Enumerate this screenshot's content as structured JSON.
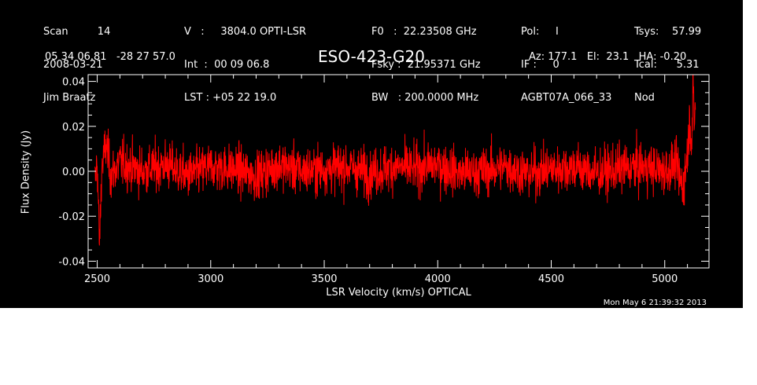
{
  "header": {
    "col1": [
      "Scan         14",
      "2008-03-21",
      "Jim Braatz"
    ],
    "col2": [
      "V   :     3804.0 OPTI-LSR",
      "Int  :  00 09 06.8",
      "LST : +05 22 19.0"
    ],
    "col3": [
      "F0   :  22.23508 GHz",
      "Fsky :  21.95371 GHz",
      "BW   : 200.0000 MHz"
    ],
    "col4": [
      "Pol:     I",
      "IF :     0",
      "AGBT07A_066_33"
    ],
    "col5": [
      "Tsys:    57.99",
      "Tcal:      5.31",
      "Nod"
    ],
    "coords": "05 34 06.81   -28 27 57.0",
    "source": "ESO-423-G20",
    "pointing": "Az: 177.1   El:  23.1   HA: -0.20",
    "timestamp": "Mon May  6 21:39:32 2013"
  },
  "colors": {
    "background": "#000000",
    "axes": "#ffffff",
    "trace": "#ff0000"
  },
  "chart_data": {
    "type": "line",
    "title": "ESO-423-G20",
    "xlabel": "LSR Velocity (km/s) OPTICAL",
    "ylabel": "Flux Density (Jy)",
    "xlim": [
      2460,
      5195
    ],
    "ylim": [
      -0.043,
      0.043
    ],
    "x_ticks": [
      2500,
      3000,
      3500,
      4000,
      4500,
      5000
    ],
    "y_ticks": [
      -0.04,
      -0.02,
      0.0,
      0.02,
      0.04
    ],
    "x_tick_labels": [
      "2500",
      "3000",
      "3500",
      "4000",
      "4500",
      "5000"
    ],
    "y_tick_labels": [
      "-0.04",
      "-0.02",
      "0.00",
      "0.02",
      "0.04"
    ],
    "series": [
      {
        "color": "#ff0000",
        "x_start": 2490,
        "x_end": 5135,
        "description_points": [
          [
            2490,
            -0.005
          ],
          [
            2500,
            0.005
          ],
          [
            2510,
            -0.034
          ],
          [
            2520,
            0.002
          ],
          [
            2540,
            0.012
          ],
          [
            2560,
            -0.002
          ],
          [
            2600,
            0.004
          ],
          [
            2700,
            0.0
          ],
          [
            2800,
            0.003
          ],
          [
            2900,
            -0.002
          ],
          [
            3000,
            0.002
          ],
          [
            3100,
            0.001
          ],
          [
            3200,
            -0.002
          ],
          [
            3300,
            0.003
          ],
          [
            3400,
            0.0
          ],
          [
            3500,
            0.001
          ],
          [
            3600,
            0.002
          ],
          [
            3700,
            -0.001
          ],
          [
            3800,
            0.002
          ],
          [
            3900,
            0.001
          ],
          [
            4000,
            0.003
          ],
          [
            4100,
            -0.001
          ],
          [
            4200,
            0.0
          ],
          [
            4300,
            0.002
          ],
          [
            4400,
            -0.001
          ],
          [
            4500,
            0.001
          ],
          [
            4600,
            0.002
          ],
          [
            4700,
            -0.001
          ],
          [
            4800,
            0.001
          ],
          [
            4900,
            0.002
          ],
          [
            5000,
            0.0
          ],
          [
            5050,
            0.003
          ],
          [
            5080,
            -0.008
          ],
          [
            5100,
            0.008
          ],
          [
            5110,
            0.022
          ],
          [
            5120,
            0.012
          ],
          [
            5125,
            0.036
          ],
          [
            5130,
            0.02
          ],
          [
            5135,
            0.028
          ]
        ],
        "noise_rms": 0.0075
      }
    ],
    "grid": false
  }
}
